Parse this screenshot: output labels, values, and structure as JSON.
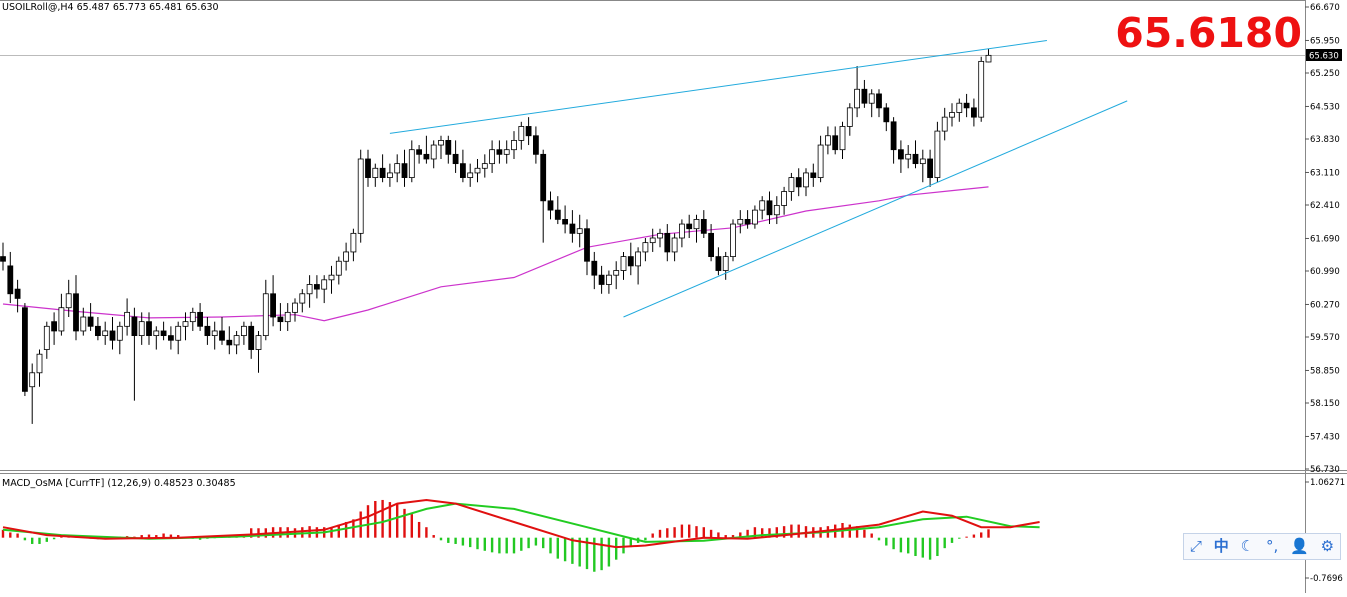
{
  "chart_data": [
    {
      "type": "candlestick",
      "symbol": "USOILRoll@,H4",
      "ohlc_header": "65.487 65.773 65.481 65.630",
      "last_price_badge": "65.630",
      "big_price": "65.6180",
      "ylim": [
        56.73,
        66.67
      ],
      "y_ticks": [
        "66.670",
        "65.950",
        "65.250",
        "64.530",
        "63.830",
        "63.110",
        "62.410",
        "61.690",
        "60.990",
        "60.270",
        "59.570",
        "58.850",
        "58.150",
        "57.430",
        "56.730"
      ],
      "candles": [
        [
          61.3,
          61.6,
          61.0,
          61.2
        ],
        [
          61.1,
          61.4,
          60.3,
          60.5
        ],
        [
          60.6,
          60.8,
          60.1,
          60.4
        ],
        [
          60.2,
          60.3,
          58.3,
          58.4
        ],
        [
          58.5,
          59.0,
          57.7,
          58.8
        ],
        [
          58.8,
          59.3,
          58.5,
          59.2
        ],
        [
          59.3,
          59.9,
          59.1,
          59.8
        ],
        [
          59.9,
          60.1,
          59.4,
          59.7
        ],
        [
          59.7,
          60.5,
          59.6,
          60.2
        ],
        [
          60.2,
          60.8,
          60.0,
          60.5
        ],
        [
          60.5,
          60.9,
          59.5,
          59.7
        ],
        [
          59.7,
          60.2,
          59.6,
          60.0
        ],
        [
          60.0,
          60.3,
          59.7,
          59.8
        ],
        [
          59.8,
          60.0,
          59.5,
          59.6
        ],
        [
          59.6,
          59.9,
          59.4,
          59.7
        ],
        [
          59.7,
          60.0,
          59.3,
          59.5
        ],
        [
          59.5,
          59.9,
          59.2,
          59.8
        ],
        [
          59.8,
          60.4,
          59.6,
          60.1
        ],
        [
          60.0,
          60.2,
          58.2,
          59.6
        ],
        [
          59.6,
          60.1,
          59.4,
          59.9
        ],
        [
          59.9,
          60.1,
          59.4,
          59.6
        ],
        [
          59.6,
          59.8,
          59.3,
          59.7
        ],
        [
          59.7,
          59.9,
          59.5,
          59.6
        ],
        [
          59.6,
          59.8,
          59.3,
          59.5
        ],
        [
          59.5,
          59.9,
          59.2,
          59.8
        ],
        [
          59.8,
          60.1,
          59.5,
          59.9
        ],
        [
          59.9,
          60.2,
          59.7,
          60.1
        ],
        [
          60.1,
          60.3,
          59.7,
          59.8
        ],
        [
          59.8,
          60.0,
          59.4,
          59.6
        ],
        [
          59.6,
          59.9,
          59.3,
          59.7
        ],
        [
          59.7,
          60.0,
          59.4,
          59.5
        ],
        [
          59.5,
          59.8,
          59.2,
          59.4
        ],
        [
          59.4,
          59.7,
          59.2,
          59.6
        ],
        [
          59.6,
          59.9,
          59.4,
          59.8
        ],
        [
          59.8,
          59.9,
          59.1,
          59.3
        ],
        [
          59.3,
          59.7,
          58.8,
          59.6
        ],
        [
          59.6,
          60.8,
          59.5,
          60.5
        ],
        [
          60.5,
          60.9,
          59.8,
          60.0
        ],
        [
          60.0,
          60.3,
          59.7,
          59.9
        ],
        [
          59.9,
          60.3,
          59.7,
          60.1
        ],
        [
          60.1,
          60.4,
          59.9,
          60.3
        ],
        [
          60.3,
          60.6,
          60.1,
          60.5
        ],
        [
          60.5,
          60.9,
          60.2,
          60.7
        ],
        [
          60.7,
          60.9,
          60.4,
          60.6
        ],
        [
          60.6,
          60.9,
          60.3,
          60.8
        ],
        [
          60.8,
          61.1,
          60.5,
          60.9
        ],
        [
          60.9,
          61.3,
          60.7,
          61.2
        ],
        [
          61.2,
          61.6,
          61.0,
          61.4
        ],
        [
          61.4,
          61.9,
          61.2,
          61.8
        ],
        [
          61.8,
          63.6,
          61.6,
          63.4
        ],
        [
          63.4,
          63.6,
          62.8,
          63.0
        ],
        [
          63.0,
          63.3,
          62.8,
          63.2
        ],
        [
          63.2,
          63.5,
          62.9,
          63.0
        ],
        [
          63.0,
          63.3,
          62.8,
          63.1
        ],
        [
          63.1,
          63.5,
          62.9,
          63.3
        ],
        [
          63.3,
          63.6,
          62.8,
          63.0
        ],
        [
          63.0,
          63.8,
          62.9,
          63.6
        ],
        [
          63.6,
          63.7,
          63.3,
          63.5
        ],
        [
          63.5,
          63.9,
          63.3,
          63.4
        ],
        [
          63.4,
          63.8,
          63.2,
          63.7
        ],
        [
          63.7,
          63.9,
          63.4,
          63.8
        ],
        [
          63.8,
          63.9,
          63.3,
          63.5
        ],
        [
          63.5,
          63.8,
          63.1,
          63.3
        ],
        [
          63.3,
          63.6,
          62.9,
          63.0
        ],
        [
          63.0,
          63.3,
          62.8,
          63.1
        ],
        [
          63.1,
          63.4,
          62.9,
          63.2
        ],
        [
          63.2,
          63.5,
          63.0,
          63.3
        ],
        [
          63.3,
          63.8,
          63.1,
          63.6
        ],
        [
          63.6,
          63.8,
          63.3,
          63.5
        ],
        [
          63.5,
          63.8,
          63.3,
          63.6
        ],
        [
          63.6,
          64.0,
          63.4,
          63.8
        ],
        [
          63.8,
          64.2,
          63.6,
          64.1
        ],
        [
          64.1,
          64.3,
          63.7,
          63.9
        ],
        [
          63.9,
          64.1,
          63.3,
          63.5
        ],
        [
          63.5,
          63.6,
          61.6,
          62.5
        ],
        [
          62.5,
          62.7,
          62.1,
          62.3
        ],
        [
          62.3,
          62.6,
          62.0,
          62.1
        ],
        [
          62.1,
          62.4,
          61.8,
          62.0
        ],
        [
          62.0,
          62.3,
          61.6,
          61.8
        ],
        [
          61.8,
          62.2,
          61.5,
          61.9
        ],
        [
          61.9,
          62.1,
          60.9,
          61.2
        ],
        [
          61.2,
          61.4,
          60.6,
          60.9
        ],
        [
          60.9,
          61.1,
          60.5,
          60.7
        ],
        [
          60.7,
          61.0,
          60.5,
          60.9
        ],
        [
          60.9,
          61.2,
          60.6,
          61.0
        ],
        [
          61.0,
          61.4,
          60.8,
          61.3
        ],
        [
          61.3,
          61.6,
          60.9,
          61.1
        ],
        [
          61.1,
          61.5,
          60.7,
          61.4
        ],
        [
          61.4,
          61.7,
          61.2,
          61.6
        ],
        [
          61.6,
          61.9,
          61.4,
          61.7
        ],
        [
          61.7,
          61.9,
          61.5,
          61.8
        ],
        [
          61.8,
          62.0,
          61.2,
          61.4
        ],
        [
          61.4,
          61.8,
          61.2,
          61.7
        ],
        [
          61.7,
          62.1,
          61.5,
          62.0
        ],
        [
          62.0,
          62.2,
          61.7,
          61.9
        ],
        [
          61.9,
          62.2,
          61.6,
          62.1
        ],
        [
          62.1,
          62.3,
          61.7,
          61.8
        ],
        [
          61.8,
          62.0,
          61.2,
          61.3
        ],
        [
          61.3,
          61.5,
          60.9,
          61.0
        ],
        [
          61.0,
          61.4,
          60.8,
          61.3
        ],
        [
          61.3,
          62.1,
          61.2,
          62.0
        ],
        [
          62.0,
          62.3,
          61.8,
          62.1
        ],
        [
          62.1,
          62.3,
          61.9,
          62.0
        ],
        [
          62.0,
          62.4,
          61.9,
          62.3
        ],
        [
          62.3,
          62.6,
          62.1,
          62.5
        ],
        [
          62.5,
          62.7,
          62.0,
          62.2
        ],
        [
          62.2,
          62.6,
          62.0,
          62.4
        ],
        [
          62.4,
          62.8,
          62.2,
          62.7
        ],
        [
          62.7,
          63.1,
          62.5,
          63.0
        ],
        [
          63.0,
          63.2,
          62.6,
          62.8
        ],
        [
          62.8,
          63.2,
          62.6,
          63.1
        ],
        [
          63.1,
          63.3,
          62.8,
          63.0
        ],
        [
          63.0,
          63.9,
          62.9,
          63.7
        ],
        [
          63.7,
          64.1,
          63.5,
          63.9
        ],
        [
          63.9,
          64.1,
          63.5,
          63.6
        ],
        [
          63.6,
          64.2,
          63.4,
          64.1
        ],
        [
          64.1,
          64.6,
          63.9,
          64.5
        ],
        [
          64.5,
          65.4,
          64.3,
          64.9
        ],
        [
          64.9,
          65.1,
          64.5,
          64.6
        ],
        [
          64.6,
          64.9,
          64.3,
          64.8
        ],
        [
          64.8,
          64.9,
          64.3,
          64.5
        ],
        [
          64.5,
          64.6,
          64.0,
          64.2
        ],
        [
          64.2,
          64.3,
          63.3,
          63.6
        ],
        [
          63.6,
          63.8,
          63.1,
          63.4
        ],
        [
          63.4,
          63.7,
          63.2,
          63.5
        ],
        [
          63.5,
          63.8,
          63.2,
          63.3
        ],
        [
          63.3,
          63.6,
          62.9,
          63.4
        ],
        [
          63.4,
          63.6,
          62.8,
          63.0
        ],
        [
          63.0,
          64.2,
          62.9,
          64.0
        ],
        [
          64.0,
          64.5,
          63.8,
          64.3
        ],
        [
          64.3,
          64.6,
          64.1,
          64.4
        ],
        [
          64.4,
          64.7,
          64.2,
          64.6
        ],
        [
          64.6,
          64.8,
          64.3,
          64.5
        ],
        [
          64.5,
          64.7,
          64.1,
          64.3
        ],
        [
          64.3,
          65.6,
          64.2,
          65.5
        ],
        [
          65.487,
          65.773,
          65.481,
          65.63
        ]
      ],
      "ma_line": [
        [
          0,
          60.28
        ],
        [
          10,
          60.12
        ],
        [
          20,
          59.98
        ],
        [
          30,
          60.0
        ],
        [
          40,
          60.05
        ],
        [
          44,
          59.92
        ],
        [
          50,
          60.15
        ],
        [
          60,
          60.65
        ],
        [
          70,
          60.85
        ],
        [
          80,
          61.5
        ],
        [
          90,
          61.78
        ],
        [
          100,
          61.92
        ],
        [
          110,
          62.28
        ],
        [
          120,
          62.5
        ],
        [
          124,
          62.62
        ],
        [
          130,
          62.72
        ],
        [
          135,
          62.8
        ]
      ],
      "trendlines": [
        {
          "from": [
            53,
            63.95
          ],
          "to": [
            143,
            65.95
          ]
        },
        {
          "from": [
            85,
            60.0
          ],
          "to": [
            154,
            64.65
          ]
        }
      ],
      "colors": {
        "bull": "#ffffff",
        "bear": "#000000",
        "ma": "#cc33cc",
        "trend": "#22aadd",
        "price_badge": "#000000",
        "big_price": "#ee1111"
      }
    },
    {
      "type": "macd_osma",
      "title": "MACD_OsMA [CurrTF] (12,26,9) 0.48523 0.30485",
      "ylim": [
        -0.7696,
        1.06271
      ],
      "y_ticks": [
        "1.06271",
        "-0.7696"
      ],
      "histogram": [
        0.15,
        0.1,
        0.08,
        -0.05,
        -0.12,
        -0.12,
        -0.08,
        -0.03,
        0.02,
        0.03,
        0.02,
        0.0,
        -0.02,
        -0.03,
        -0.03,
        -0.02,
        0.02,
        0.03,
        0.02,
        0.05,
        0.06,
        0.05,
        0.08,
        0.06,
        0.05,
        0.02,
        -0.02,
        -0.04,
        -0.02,
        -0.01,
        0.02,
        0.03,
        0.02,
        0.03,
        0.18,
        0.18,
        0.18,
        0.2,
        0.2,
        0.2,
        0.18,
        0.2,
        0.22,
        0.2,
        0.2,
        0.2,
        0.25,
        0.3,
        0.35,
        0.5,
        0.62,
        0.7,
        0.72,
        0.68,
        0.65,
        0.55,
        0.45,
        0.3,
        0.2,
        0.05,
        -0.05,
        -0.1,
        -0.12,
        -0.15,
        -0.18,
        -0.22,
        -0.25,
        -0.28,
        -0.3,
        -0.3,
        -0.3,
        -0.25,
        -0.2,
        -0.15,
        -0.2,
        -0.3,
        -0.4,
        -0.45,
        -0.5,
        -0.55,
        -0.6,
        -0.65,
        -0.62,
        -0.55,
        -0.42,
        -0.3,
        -0.18,
        -0.1,
        -0.05,
        0.08,
        0.15,
        0.18,
        0.2,
        0.25,
        0.25,
        0.22,
        0.2,
        0.15,
        0.1,
        0.05,
        0.05,
        0.1,
        0.15,
        0.2,
        0.18,
        0.18,
        0.2,
        0.22,
        0.25,
        0.25,
        0.22,
        0.2,
        0.2,
        0.22,
        0.25,
        0.28,
        0.25,
        0.22,
        0.15,
        0.08,
        -0.05,
        -0.15,
        -0.22,
        -0.28,
        -0.3,
        -0.35,
        -0.38,
        -0.42,
        -0.35,
        -0.2,
        -0.1,
        -0.02,
        0.02,
        0.06,
        0.1,
        0.16
      ],
      "macd_line": [
        [
          0,
          0.2
        ],
        [
          6,
          0.05
        ],
        [
          14,
          -0.02
        ],
        [
          24,
          0.0
        ],
        [
          34,
          0.06
        ],
        [
          44,
          0.15
        ],
        [
          50,
          0.4
        ],
        [
          54,
          0.65
        ],
        [
          58,
          0.72
        ],
        [
          62,
          0.65
        ],
        [
          70,
          0.3
        ],
        [
          78,
          -0.05
        ],
        [
          84,
          -0.18
        ],
        [
          88,
          -0.15
        ],
        [
          96,
          0.0
        ],
        [
          102,
          -0.02
        ],
        [
          108,
          0.06
        ],
        [
          114,
          0.15
        ],
        [
          120,
          0.25
        ],
        [
          126,
          0.5
        ],
        [
          130,
          0.42
        ],
        [
          134,
          0.2
        ],
        [
          138,
          0.2
        ],
        [
          142,
          0.3
        ]
      ],
      "signal_line": [
        [
          0,
          0.15
        ],
        [
          8,
          0.05
        ],
        [
          20,
          -0.02
        ],
        [
          32,
          0.02
        ],
        [
          44,
          0.1
        ],
        [
          52,
          0.3
        ],
        [
          58,
          0.55
        ],
        [
          62,
          0.65
        ],
        [
          70,
          0.55
        ],
        [
          80,
          0.2
        ],
        [
          88,
          -0.08
        ],
        [
          96,
          -0.06
        ],
        [
          104,
          0.05
        ],
        [
          112,
          0.1
        ],
        [
          120,
          0.2
        ],
        [
          126,
          0.35
        ],
        [
          132,
          0.4
        ],
        [
          138,
          0.22
        ],
        [
          142,
          0.2
        ]
      ],
      "colors": {
        "hist_pos": "#e01010",
        "hist_neg": "#22c822",
        "macd": "#e01010",
        "signal": "#22cc22"
      }
    }
  ],
  "ime_toolbar": {
    "input_mode": "中",
    "icons": [
      "expand-icon",
      "moon-icon",
      "punctuation-icon",
      "user-icon",
      "gear-icon"
    ],
    "glyphs": {
      "expand": "⤢",
      "moon": "☾",
      "punct": "°,",
      "user": "👤",
      "gear": "⚙"
    }
  }
}
